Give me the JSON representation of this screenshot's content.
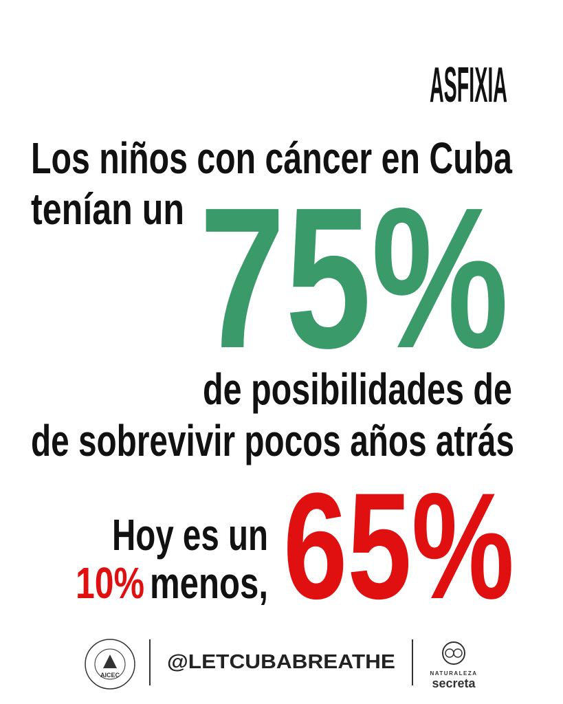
{
  "header": {
    "brand": "ASFIXIA"
  },
  "headline": {
    "line1": "Los niños con cáncer en Cuba",
    "line2": "tenían un",
    "big": "75%",
    "line3": "de posibilidades de",
    "line4": "de sobrevivir pocos años atrás"
  },
  "today": {
    "line1": "Hoy es un",
    "diff": "10%",
    "line2": "menos,",
    "big": "65%"
  },
  "footer": {
    "left_logo": "AICEC",
    "handle": "@LETCUBABREATHE",
    "right_logo_top": "NATURALEZA",
    "right_logo_bottom": "secreta"
  }
}
